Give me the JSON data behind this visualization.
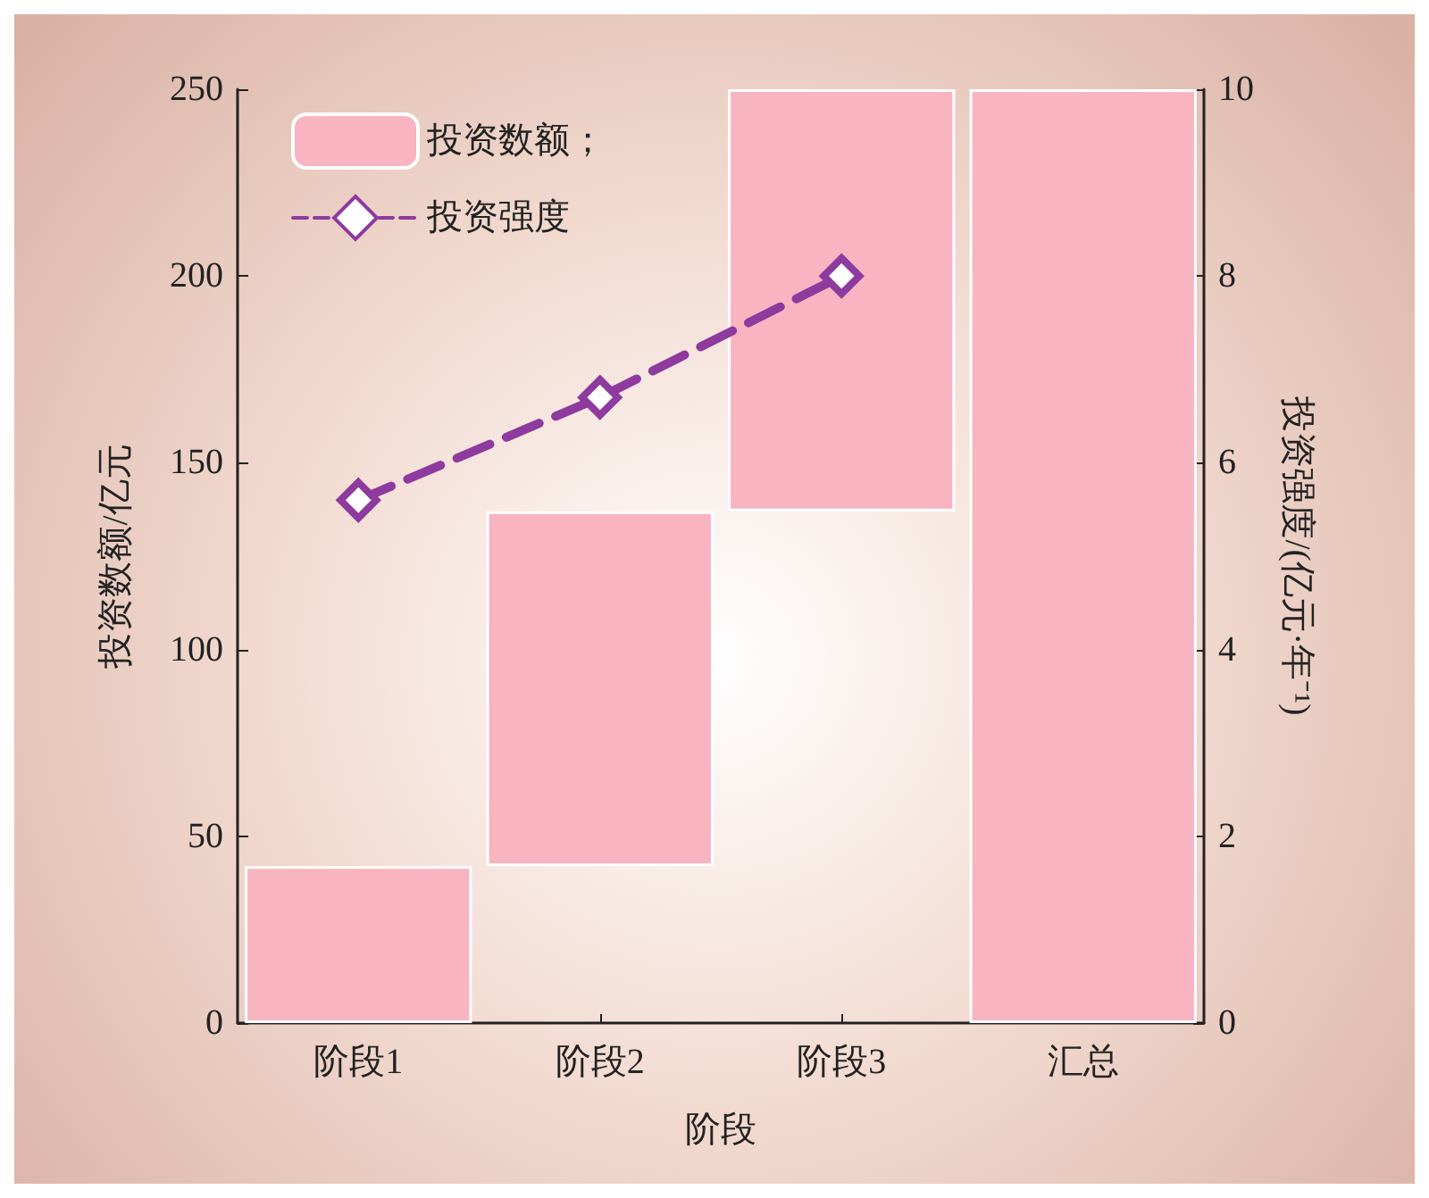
{
  "chart_data": {
    "type": "bar",
    "xlabel": "阶段",
    "ylabel": "投资数额/亿元",
    "y2label": "投资强度/(亿元·年⁻¹)",
    "categories": [
      "阶段1",
      "阶段2",
      "阶段3",
      "汇总"
    ],
    "series": [
      {
        "name": "投资数额；",
        "color": "#f8b4c1",
        "values": [
          42,
          95,
          113,
          250
        ],
        "base": [
          0,
          42,
          137,
          0
        ]
      },
      {
        "name": "投资强度",
        "type": "line",
        "axis": "y2",
        "color": "#8e3a9e",
        "values": [
          5.6,
          6.7,
          8.0,
          null
        ],
        "marker": "diamond",
        "line_style": "dashed"
      }
    ],
    "ylim": [
      0,
      250
    ],
    "yticks": [
      0,
      50,
      100,
      150,
      200,
      250
    ],
    "y2lim": [
      0,
      10
    ],
    "y2ticks": [
      0,
      2,
      4,
      6,
      8,
      10
    ],
    "grid": false,
    "legend": "top left"
  }
}
